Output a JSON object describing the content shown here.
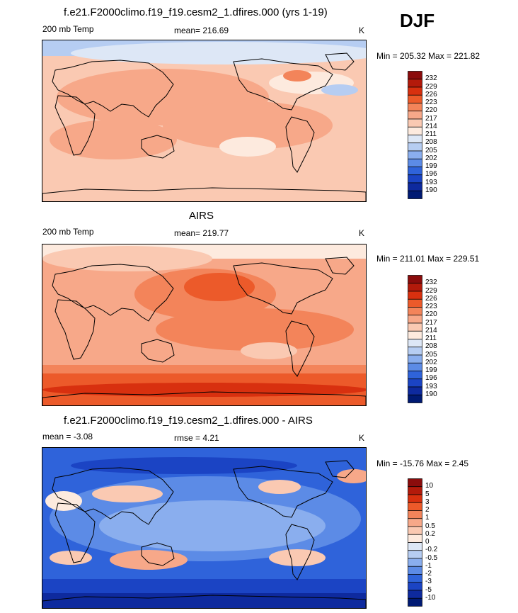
{
  "season": "DJF",
  "panels": [
    {
      "title": "f.e21.F2000climo.f19_f19.cesm2_1.dfires.000 (yrs 1-19)",
      "left_label": "200 mb Temp",
      "center_label": "mean= 216.69",
      "units": "K",
      "minmax": "Min = 205.32 Max = 221.82",
      "levels": [
        "232",
        "229",
        "226",
        "223",
        "220",
        "217",
        "214",
        "211",
        "208",
        "205",
        "202",
        "199",
        "196",
        "193",
        "190"
      ],
      "colors": [
        "#8b0c0c",
        "#b31a0b",
        "#d8300f",
        "#ec5a2a",
        "#f3845a",
        "#f7a889",
        "#fac9b2",
        "#fdeade",
        "#dde7f6",
        "#b6cdf2",
        "#8aaeee",
        "#5c8be6",
        "#2f63da",
        "#1b44c4",
        "#0e2a9e",
        "#001a73"
      ],
      "field": "model"
    },
    {
      "title": "AIRS",
      "left_label": "200 mb Temp",
      "center_label": "mean= 219.77",
      "units": "K",
      "minmax": "Min = 211.01 Max = 229.51",
      "levels": [
        "232",
        "229",
        "226",
        "223",
        "220",
        "217",
        "214",
        "211",
        "208",
        "205",
        "202",
        "199",
        "196",
        "193",
        "190"
      ],
      "colors": [
        "#8b0c0c",
        "#b31a0b",
        "#d8300f",
        "#ec5a2a",
        "#f3845a",
        "#f7a889",
        "#fac9b2",
        "#fdeade",
        "#dde7f6",
        "#b6cdf2",
        "#8aaeee",
        "#5c8be6",
        "#2f63da",
        "#1b44c4",
        "#0e2a9e",
        "#001a73"
      ],
      "field": "obs"
    },
    {
      "title": "f.e21.F2000climo.f19_f19.cesm2_1.dfires.000 - AIRS",
      "left_label": "mean =  -3.08",
      "center_label": "rmse =   4.21",
      "units": "K",
      "minmax": "Min = -15.76 Max =   2.45",
      "levels": [
        "10",
        "5",
        "3",
        "2",
        "1",
        "0.5",
        "0.2",
        "0",
        "-0.2",
        "-0.5",
        "-1",
        "-2",
        "-3",
        "-5",
        "-10"
      ],
      "colors": [
        "#8b0c0c",
        "#b31a0b",
        "#d8300f",
        "#ec5a2a",
        "#f3845a",
        "#f7a889",
        "#fac9b2",
        "#fdeade",
        "#dde7f6",
        "#b6cdf2",
        "#8aaeee",
        "#5c8be6",
        "#2f63da",
        "#1b44c4",
        "#0e2a9e",
        "#001a73"
      ],
      "field": "diff"
    }
  ],
  "chart_data": [
    {
      "type": "heatmap",
      "title": "f.e21.F2000climo.f19_f19.cesm2_1.dfires.000 (yrs 1-19)",
      "variable": "200 mb Temp",
      "units": "K",
      "mean": 216.69,
      "min": 205.32,
      "max": 221.82,
      "contour_levels": [
        190,
        193,
        196,
        199,
        202,
        205,
        208,
        211,
        214,
        217,
        220,
        223,
        226,
        229,
        232
      ]
    },
    {
      "type": "heatmap",
      "title": "AIRS",
      "variable": "200 mb Temp",
      "units": "K",
      "mean": 219.77,
      "min": 211.01,
      "max": 229.51,
      "contour_levels": [
        190,
        193,
        196,
        199,
        202,
        205,
        208,
        211,
        214,
        217,
        220,
        223,
        226,
        229,
        232
      ]
    },
    {
      "type": "heatmap",
      "title": "f.e21.F2000climo.f19_f19.cesm2_1.dfires.000 - AIRS",
      "units": "K",
      "mean": -3.08,
      "rmse": 4.21,
      "min": -15.76,
      "max": 2.45,
      "contour_levels": [
        -10,
        -5,
        -3,
        -2,
        -1,
        -0.5,
        -0.2,
        0,
        0.2,
        0.5,
        1,
        2,
        3,
        5,
        10
      ]
    }
  ]
}
